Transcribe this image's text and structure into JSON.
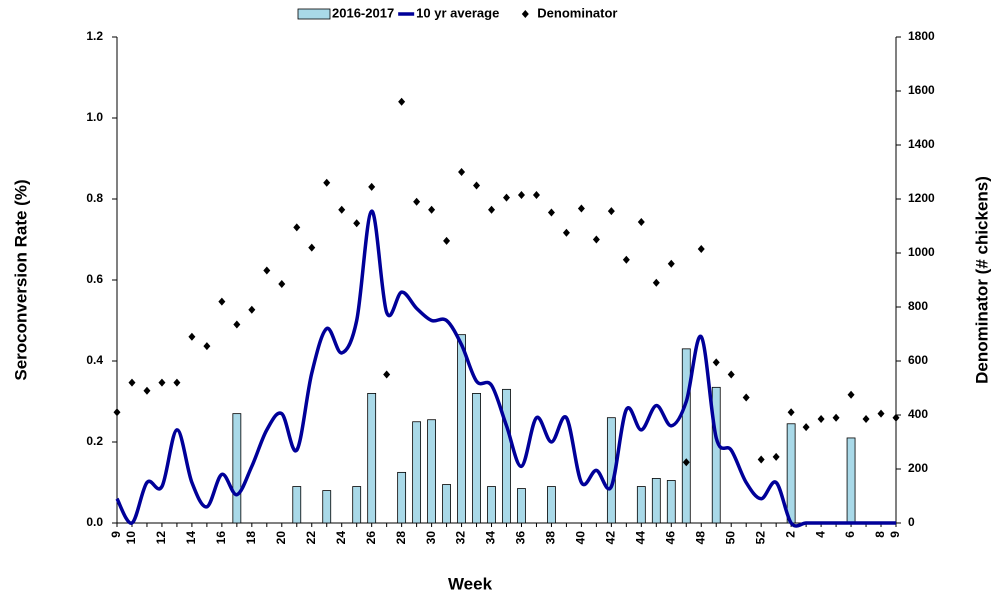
{
  "chart_data": {
    "type": "combo",
    "x_label": "Week",
    "y_label": "Seroconversion Rate (%)",
    "y2_label": "Denominator (# chickens)",
    "categories": [
      "9",
      "10",
      null,
      "12",
      null,
      "14",
      null,
      "16",
      null,
      "18",
      null,
      "20",
      null,
      "22",
      null,
      "24",
      null,
      "26",
      null,
      "28",
      null,
      "30",
      null,
      "32",
      null,
      "34",
      null,
      "36",
      null,
      "38",
      null,
      "40",
      null,
      "42",
      null,
      "44",
      null,
      "46",
      null,
      "48",
      null,
      "50",
      null,
      "52",
      null,
      "2",
      null,
      "4",
      null,
      "6",
      null,
      "8",
      "9"
    ],
    "ylim": [
      0,
      1.2
    ],
    "yticks": [
      {
        "value": 0,
        "label": "0.0"
      },
      {
        "value": 0.2,
        "label": "0.2"
      },
      {
        "value": 0.4,
        "label": "0.4"
      },
      {
        "value": 0.6,
        "label": "0.6"
      },
      {
        "value": 0.8,
        "label": "0.8"
      },
      {
        "value": 1,
        "label": "1.0"
      },
      {
        "value": 1.2,
        "label": "1.2"
      }
    ],
    "y2lim": [
      0,
      1800
    ],
    "y2ticks": [
      0,
      200,
      400,
      600,
      800,
      1000,
      1200,
      1400,
      1600,
      1800
    ],
    "legend": "top",
    "series": [
      {
        "name": "2016-2017",
        "type": "bar",
        "color": "#a9d9e8",
        "values": [
          0,
          0,
          0,
          0,
          0,
          0,
          0,
          0,
          0.27,
          0,
          0,
          0,
          0.09,
          0,
          0.08,
          0,
          0.09,
          0.32,
          0,
          0.125,
          0.25,
          0.255,
          0.095,
          0.465,
          0.32,
          0.09,
          0.33,
          0.085,
          0,
          0.09,
          0,
          0,
          0,
          0.26,
          0,
          0.09,
          0.11,
          0.105,
          0.43,
          0,
          0.335,
          0,
          0,
          0,
          0,
          0.245,
          0,
          0,
          0,
          0.21,
          0,
          0,
          0
        ]
      },
      {
        "name": "10 yr average",
        "type": "line",
        "color": "#000099",
        "values": [
          0.06,
          0,
          0.1,
          0.09,
          0.23,
          0.1,
          0.04,
          0.12,
          0.07,
          0.14,
          0.23,
          0.27,
          0.18,
          0.37,
          0.48,
          0.42,
          0.5,
          0.77,
          0.52,
          0.57,
          0.53,
          0.5,
          0.5,
          0.44,
          0.35,
          0.34,
          0.24,
          0.14,
          0.26,
          0.2,
          0.26,
          0.1,
          0.13,
          0.09,
          0.28,
          0.23,
          0.29,
          0.24,
          0.3,
          0.46,
          0.21,
          0.18,
          0.1,
          0.06,
          0.1,
          0,
          0,
          0,
          0,
          0,
          0,
          0,
          0
        ]
      },
      {
        "name": "Denominator",
        "type": "scatter",
        "axis": "y2",
        "color": "#000000",
        "values": [
          410,
          520,
          490,
          520,
          520,
          690,
          655,
          820,
          735,
          790,
          935,
          885,
          1095,
          1020,
          1260,
          1160,
          1110,
          1245,
          550,
          1560,
          1190,
          1160,
          1045,
          1300,
          1250,
          1160,
          1205,
          1215,
          1215,
          1150,
          1075,
          1165,
          1050,
          1155,
          975,
          1115,
          890,
          960,
          225,
          1015,
          595,
          550,
          465,
          235,
          245,
          410,
          355,
          385,
          390,
          475,
          385,
          405,
          390
        ]
      }
    ]
  }
}
